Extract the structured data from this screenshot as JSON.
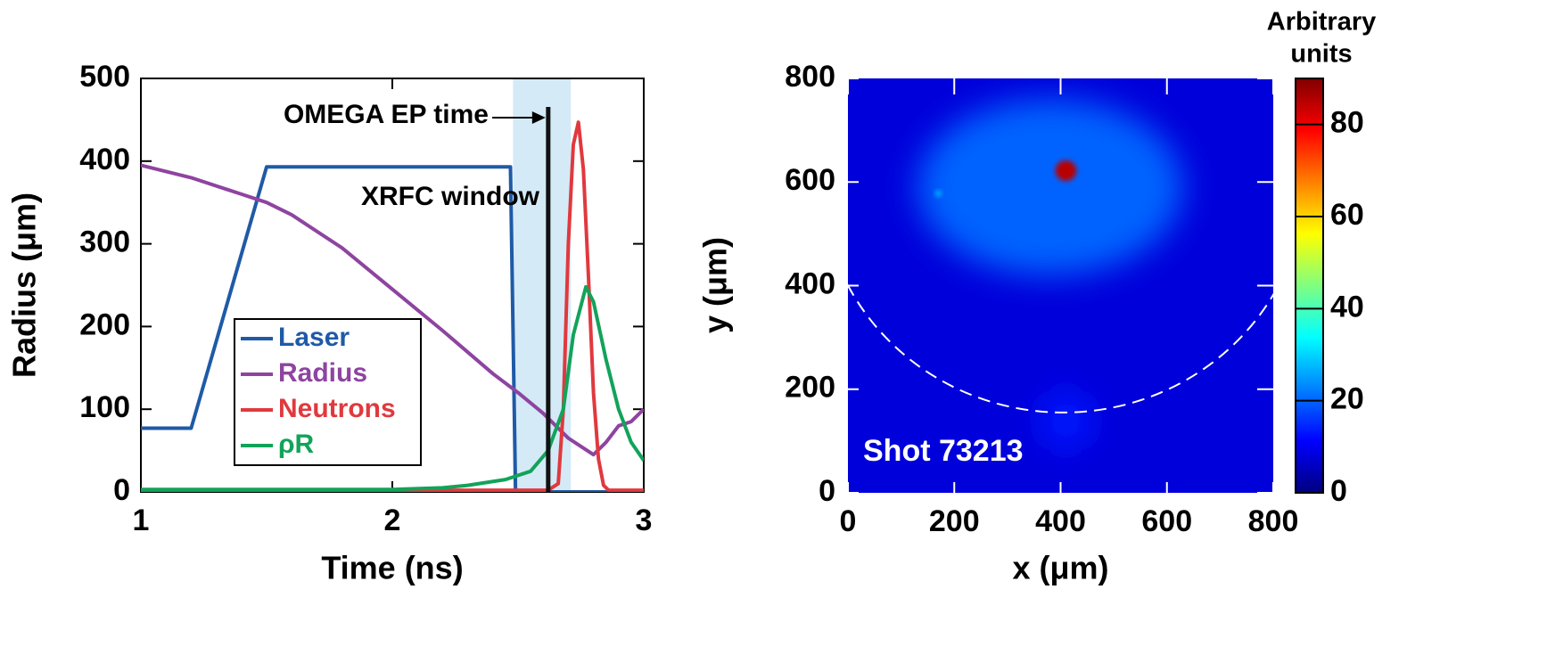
{
  "chart_data": [
    {
      "type": "line",
      "xlabel": "Time (ns)",
      "ylabel": "Radius (μm)",
      "xlim": [
        1,
        3
      ],
      "xticks": [
        1,
        2,
        3
      ],
      "ylim": [
        0,
        500
      ],
      "yticks": [
        0,
        100,
        200,
        300,
        400,
        500
      ],
      "series": [
        {
          "name": "Laser",
          "color": "#1f5aa6",
          "x": [
            1,
            1.2,
            1.5,
            2.47,
            2.49,
            3
          ],
          "values": [
            77,
            77,
            393,
            393,
            0,
            0
          ]
        },
        {
          "name": "Radius",
          "color": "#8e44a0",
          "x": [
            1,
            1.2,
            1.4,
            1.5,
            1.6,
            1.8,
            2.0,
            2.2,
            2.4,
            2.5,
            2.6,
            2.7,
            2.8,
            2.85,
            2.9,
            2.95,
            3.0
          ],
          "values": [
            395,
            380,
            360,
            350,
            335,
            295,
            245,
            195,
            143,
            120,
            95,
            65,
            45,
            60,
            80,
            85,
            100
          ]
        },
        {
          "name": "Neutrons",
          "color": "#e0393e",
          "x": [
            1,
            2.62,
            2.66,
            2.68,
            2.7,
            2.72,
            2.74,
            2.76,
            2.78,
            2.8,
            2.82,
            2.84,
            2.86,
            3
          ],
          "values": [
            2,
            2,
            10,
            100,
            300,
            420,
            447,
            390,
            260,
            120,
            40,
            8,
            2,
            2
          ]
        },
        {
          "name": "ρR",
          "color": "#12a35a",
          "x": [
            1,
            2.0,
            2.2,
            2.3,
            2.45,
            2.55,
            2.62,
            2.68,
            2.72,
            2.77,
            2.8,
            2.85,
            2.9,
            2.95,
            3.0
          ],
          "values": [
            3,
            3,
            5,
            8,
            15,
            25,
            50,
            100,
            190,
            248,
            230,
            160,
            100,
            60,
            38
          ]
        }
      ],
      "shaded_window": [
        2.48,
        2.71
      ],
      "shaded_label": "XRFC window",
      "marker_time": 2.62,
      "marker_label": "OMEGA EP time"
    },
    {
      "type": "heatmap",
      "xlabel": "x (μm)",
      "ylabel": "y (μm)",
      "xlim": [
        0,
        800
      ],
      "xticks": [
        0,
        200,
        400,
        600,
        800
      ],
      "ylim": [
        0,
        800
      ],
      "yticks": [
        0,
        200,
        400,
        600,
        800
      ],
      "background": 8,
      "blobs": [
        {
          "x": 380,
          "y": 590,
          "rx": 250,
          "ry": 170,
          "value": 20
        },
        {
          "x": 410,
          "y": 140,
          "rx": 50,
          "ry": 60,
          "value": 13
        },
        {
          "x": 170,
          "y": 578,
          "rx": 5,
          "ry": 5,
          "value": 32
        },
        {
          "x": 410,
          "y": 622,
          "rx": 20,
          "ry": 20,
          "value": 85
        }
      ],
      "reference_circle": {
        "x": 405,
        "y": 612,
        "r": 457
      },
      "annotation": "Shot 73213",
      "colorbar_title": [
        "Arbitrary",
        "units"
      ],
      "clim": [
        0,
        90
      ],
      "cticks": [
        0,
        20,
        40,
        60,
        80
      ]
    }
  ]
}
